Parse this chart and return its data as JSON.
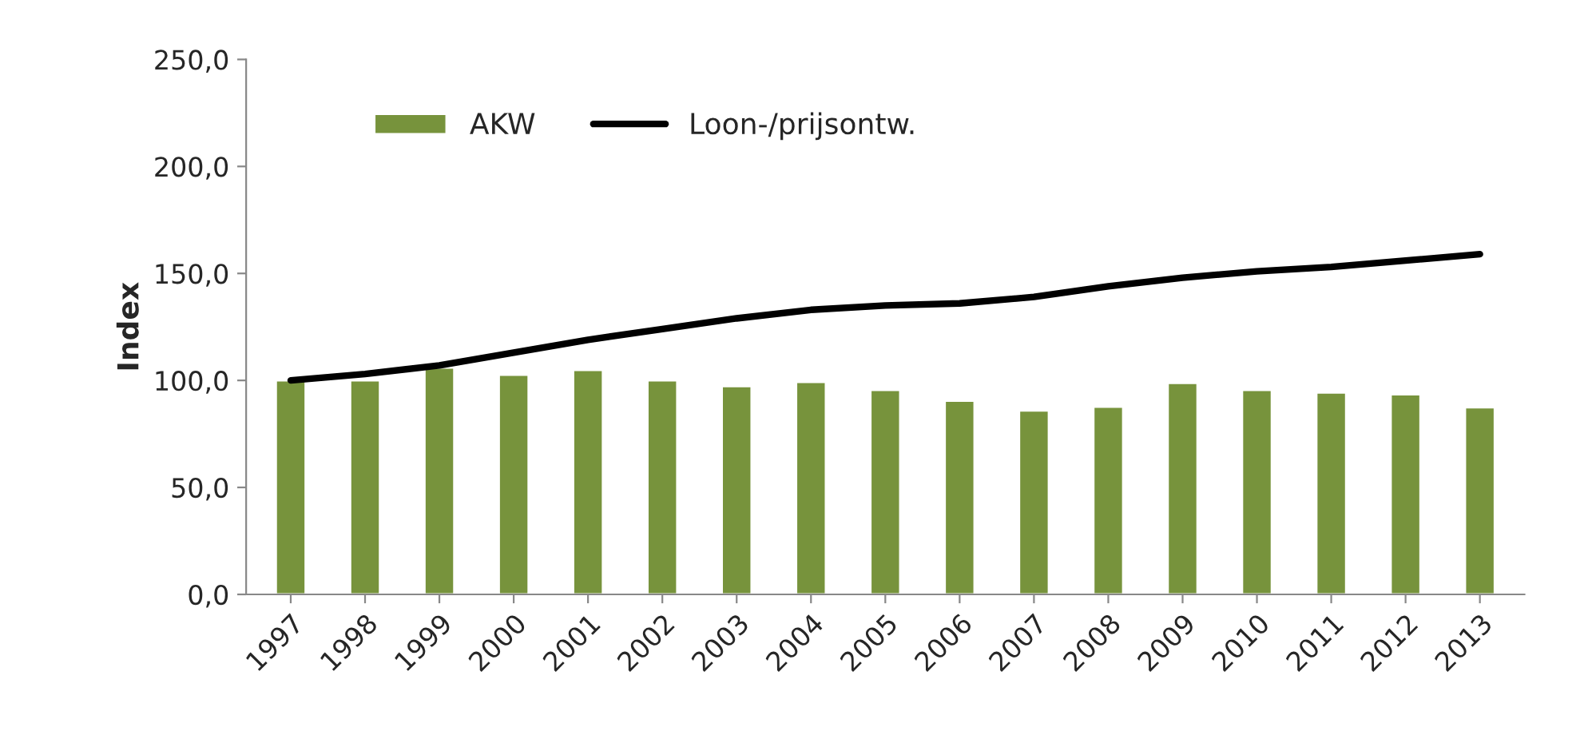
{
  "chart_data": {
    "type": "bar",
    "ylabel": "Index",
    "categories": [
      "1997",
      "1998",
      "1999",
      "2000",
      "2001",
      "2002",
      "2003",
      "2004",
      "2005",
      "2006",
      "2007",
      "2008",
      "2009",
      "2010",
      "2011",
      "2012",
      "2013"
    ],
    "series": [
      {
        "name": "AKW",
        "color": "#77933c",
        "values": [
          100,
          100,
          106,
          102.6,
          104.9,
          100,
          97.3,
          99.3,
          95.5,
          90.5,
          85.9,
          87.7,
          98.8,
          95.5,
          94.3,
          93.5,
          87.4
        ]
      },
      {
        "name": "Loon-/prijsontw.",
        "type": "line",
        "color": "#000000",
        "values": [
          100,
          103,
          107,
          113,
          119,
          124,
          129,
          133,
          135,
          136,
          139,
          144,
          148,
          151,
          153,
          156,
          159
        ]
      }
    ],
    "ylim": [
      0,
      250
    ],
    "yticks": [
      {
        "value": 0,
        "label": "0,0"
      },
      {
        "value": 50,
        "label": "50,0"
      },
      {
        "value": 100,
        "label": "100,0"
      },
      {
        "value": 150,
        "label": "150,0"
      },
      {
        "value": 200,
        "label": "200,0"
      },
      {
        "value": 250,
        "label": "250,0"
      }
    ],
    "grid": false,
    "legend": "top left",
    "marker": "none",
    "line_style": "solid"
  }
}
